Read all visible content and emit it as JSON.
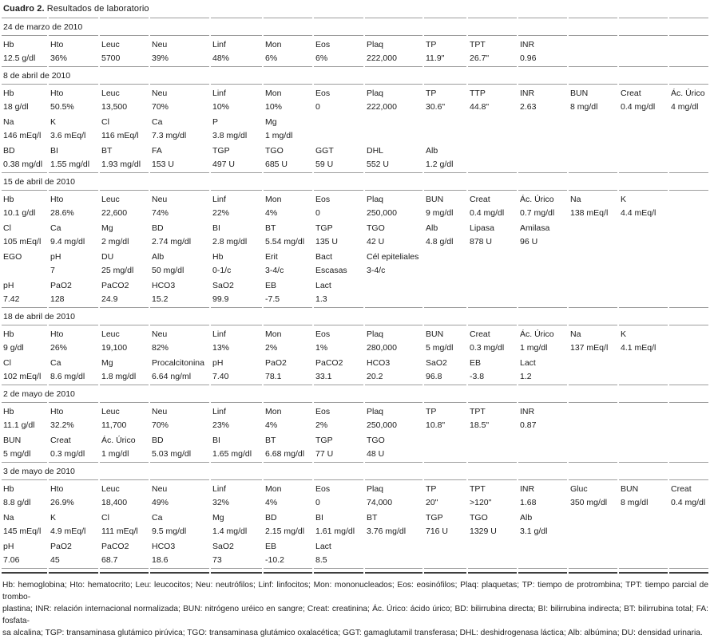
{
  "title": {
    "label": "Cuadro 2.",
    "text": "Resultados de laboratorio"
  },
  "sections": [
    {
      "date": "24 de marzo de 2010",
      "rows": [
        {
          "labels": [
            "Hb",
            "Hto",
            "Leuc",
            "Neu",
            "Linf",
            "Mon",
            "Eos",
            "Plaq",
            "TP",
            "TPT",
            "INR"
          ],
          "values": [
            "12.5 g/dl",
            "36%",
            "5700",
            "39%",
            "48%",
            "6%",
            "6%",
            "222,000",
            "11.9\"",
            "26.7\"",
            "0.96"
          ]
        }
      ]
    },
    {
      "date": "8 de abril de 2010",
      "rows": [
        {
          "labels": [
            "Hb",
            "Hto",
            "Leuc",
            "Neu",
            "Linf",
            "Mon",
            "Eos",
            "Plaq",
            "TP",
            "TTP",
            "INR",
            "BUN",
            "Creat",
            "Ác. Úrico"
          ],
          "values": [
            "18 g/dl",
            "50.5%",
            "13,500",
            "70%",
            "10%",
            "10%",
            "0",
            "222,000",
            "30.6\"",
            "44.8\"",
            "2.63",
            "8 mg/dl",
            "0.4 mg/dl",
            "4 mg/dl"
          ]
        },
        {
          "labels": [
            "Na",
            "K",
            "Cl",
            "Ca",
            "P",
            "Mg"
          ],
          "values": [
            "146 mEq/l",
            "3.6 mEq/l",
            "116 mEq/l",
            "7.3 mg/dl",
            "3.8 mg/dl",
            "1 mg/dl"
          ]
        },
        {
          "labels": [
            "BD",
            "BI",
            "BT",
            "FA",
            "TGP",
            "TGO",
            "GGT",
            "DHL",
            "Alb"
          ],
          "values": [
            "0.38 mg/dl",
            "1.55 mg/dl",
            "1.93 mg/dl",
            "153 U",
            "497 U",
            "685 U",
            "59 U",
            "552 U",
            "1.2 g/dl"
          ]
        }
      ]
    },
    {
      "date": "15 de abril de 2010",
      "rows": [
        {
          "labels": [
            "Hb",
            "Hto",
            "Leuc",
            "Neu",
            "Linf",
            "Mon",
            "Eos",
            "Plaq",
            "BUN",
            "Creat",
            "Ác. Úrico",
            "Na",
            "K"
          ],
          "values": [
            "10.1 g/dl",
            "28.6%",
            "22,600",
            "74%",
            "22%",
            "4%",
            "0",
            "250,000",
            "9 mg/dl",
            "0.4 mg/dl",
            "0.7 mg/dl",
            "138 mEq/l",
            "4.4 mEq/l"
          ]
        },
        {
          "labels": [
            "Cl",
            "Ca",
            "Mg",
            "BD",
            "BI",
            "BT",
            "TGP",
            "TGO",
            "Alb",
            "Lipasa",
            "Amilasa"
          ],
          "values": [
            "105 mEq/l",
            "9.4 mg/dl",
            "2 mg/dl",
            "2.74 mg/dl",
            "2.8 mg/dl",
            "5.54 mg/dl",
            "135 U",
            "42 U",
            "4.8 g/dl",
            "878 U",
            "96 U"
          ]
        },
        {
          "labels": [
            "EGO",
            "pH",
            "DU",
            "Alb",
            "Hb",
            "Erit",
            "Bact",
            "Cél epiteliales"
          ],
          "values": [
            "",
            "7",
            "25 mg/dl",
            "50 mg/dl",
            "0-1/c",
            "3-4/c",
            "Escasas",
            "3-4/c"
          ]
        },
        {
          "labels": [
            "pH",
            "PaO2",
            "PaCO2",
            "HCO3",
            "SaO2",
            "EB",
            "Lact"
          ],
          "values": [
            "7.42",
            "128",
            "24.9",
            "15.2",
            "99.9",
            "-7.5",
            "1.3"
          ]
        }
      ]
    },
    {
      "date": "18 de abril de 2010",
      "rows": [
        {
          "labels": [
            "Hb",
            "Hto",
            "Leuc",
            "Neu",
            "Linf",
            "Mon",
            "Eos",
            "Plaq",
            "BUN",
            "Creat",
            "Ác. Úrico",
            "Na",
            "K"
          ],
          "values": [
            "9 g/dl",
            "26%",
            "19,100",
            "82%",
            "13%",
            "2%",
            "1%",
            "280,000",
            "5 mg/dl",
            "0.3 mg/dl",
            "1 mg/dl",
            "137 mEq/l",
            "4.1 mEq/l"
          ]
        },
        {
          "labels": [
            "Cl",
            "Ca",
            "Mg",
            "Procalcitonina",
            "pH",
            "PaO2",
            "PaCO2",
            "HCO3",
            "SaO2",
            "EB",
            "Lact"
          ],
          "values": [
            "102 mEq/l",
            "8.6 mg/dl",
            "1.8 mg/dl",
            "6.64 ng/ml",
            "7.40",
            "78.1",
            "33.1",
            "20.2",
            "96.8",
            "-3.8",
            "1.2"
          ]
        }
      ]
    },
    {
      "date": "2 de mayo de 2010",
      "rows": [
        {
          "labels": [
            "Hb",
            "Hto",
            "Leuc",
            "Neu",
            "Linf",
            "Mon",
            "Eos",
            "Plaq",
            "TP",
            "TPT",
            "INR"
          ],
          "values": [
            "11.1 g/dl",
            "32.2%",
            "11,700",
            "70%",
            "23%",
            "4%",
            "2%",
            "250,000",
            "10.8\"",
            "18.5\"",
            "0.87"
          ]
        },
        {
          "labels": [
            "BUN",
            "Creat",
            "Ác. Úrico",
            "BD",
            "BI",
            "BT",
            "TGP",
            "TGO"
          ],
          "values": [
            "5 mg/dl",
            "0.3 mg/dl",
            "1 mg/dl",
            "5.03 mg/dl",
            "1.65 mg/dl",
            "6.68 mg/dl",
            "77 U",
            "48 U"
          ]
        }
      ]
    },
    {
      "date": "3 de mayo de 2010",
      "rows": [
        {
          "labels": [
            "Hb",
            "Hto",
            "Leuc",
            "Neu",
            "Linf",
            "Mon",
            "Eos",
            "Plaq",
            "TP",
            "TPT",
            "INR",
            "Gluc",
            "BUN",
            "Creat"
          ],
          "values": [
            "8.8 g/dl",
            "26.9%",
            "18,400",
            "49%",
            "32%",
            "4%",
            "0",
            "74,000",
            "20\"",
            ">120\"",
            "1.68",
            "350 mg/dl",
            "8 mg/dl",
            "0.4 mg/dl"
          ]
        },
        {
          "labels": [
            "Na",
            "K",
            "Cl",
            "Ca",
            "Mg",
            "BD",
            "BI",
            "BT",
            "TGP",
            "TGO",
            "Alb"
          ],
          "values": [
            "145 mEq/l",
            "4.9 mEq/l",
            "111 mEq/l",
            "9.5 mg/dl",
            "1.4 mg/dl",
            "2.15 mg/dl",
            "1.61 mg/dl",
            "3.76 mg/dl",
            "716 U",
            "1329 U",
            "3.1 g/dl"
          ]
        },
        {
          "labels": [
            "pH",
            "PaO2",
            "PaCO2",
            "HCO3",
            "SaO2",
            "EB",
            "Lact"
          ],
          "values": [
            "7.06",
            "45",
            "68.7",
            "18.6",
            "73",
            "-10.2",
            "8.5"
          ]
        }
      ]
    }
  ],
  "footnote": {
    "lines": [
      "Hb: hemoglobina; Hto: hematocrito; Leu: leucocitos; Neu: neutrófilos; Linf: linfocitos; Mon: mononucleados; Eos: eosinófilos; Plaq: plaquetas; TP: tiempo de protrombina; TPT: tiempo parcial de trombo-",
      "plastina; INR: relación internacional normalizada; BUN: nitrógeno uréico en sangre; Creat: creatinina; Ác. Úrico: ácido úrico; BD: bilirrubina directa; BI: bilirrubina indirecta; BT: bilirrubina total; FA: fosfata-",
      "sa alcalina; TGP: transaminasa glutámico pirúvica; TGO: transaminasa glutámico oxalacética; GGT: gamaglutamil transferasa; DHL: deshidrogenasa láctica; Alb: albúmina; DU: densidad urinaria."
    ]
  }
}
